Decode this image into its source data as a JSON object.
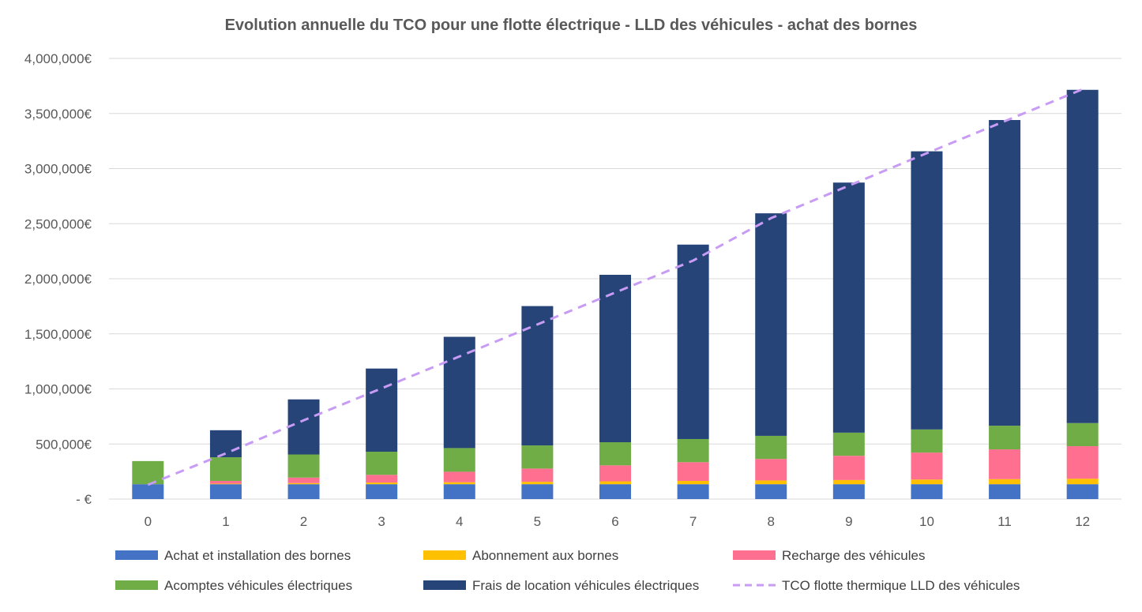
{
  "chart_data": {
    "type": "bar",
    "stacked": true,
    "title": "Evolution annuelle du TCO  pour une flotte électrique - LLD des véhicules - achat des bornes",
    "xlabel": "",
    "ylabel": "",
    "categories": [
      "0",
      "1",
      "2",
      "3",
      "4",
      "5",
      "6",
      "7",
      "8",
      "9",
      "10",
      "11",
      "12"
    ],
    "ylim": [
      0,
      4000000
    ],
    "yticks": [
      0,
      500000,
      1000000,
      1500000,
      2000000,
      2500000,
      3000000,
      3500000,
      4000000
    ],
    "ytick_labels": [
      "-  €",
      "500,000€",
      "1,000,000€",
      "1,500,000€",
      "2,000,000€",
      "2,500,000€",
      "3,000,000€",
      "3,500,000€",
      "4,000,000€"
    ],
    "grid": true,
    "legend_position": "bottom",
    "series": [
      {
        "name": "Achat et installation des bornes",
        "color": "#4472C4",
        "values": [
          135000,
          135000,
          135000,
          135000,
          135000,
          135000,
          135000,
          135000,
          135000,
          135000,
          135000,
          135000,
          135000
        ]
      },
      {
        "name": "Abonnement aux bornes",
        "color": "#FFC000",
        "values": [
          0,
          5000,
          10000,
          15000,
          18000,
          22000,
          26000,
          30000,
          34000,
          38000,
          42000,
          46000,
          50000
        ]
      },
      {
        "name": "Recharge des véhicules",
        "color": "#FF6F8F",
        "values": [
          0,
          25000,
          50000,
          70000,
          95000,
          120000,
          145000,
          170000,
          195000,
          220000,
          245000,
          270000,
          295000
        ]
      },
      {
        "name": "Acomptes véhicules électriques",
        "color": "#70AD47",
        "values": [
          210000,
          215000,
          210000,
          210000,
          215000,
          210000,
          210000,
          210000,
          210000,
          210000,
          210000,
          215000,
          210000
        ]
      },
      {
        "name": "Frais de location véhicules électriques",
        "color": "#264478",
        "values": [
          0,
          245000,
          500000,
          755000,
          1010000,
          1265000,
          1520000,
          1765000,
          2020000,
          2270000,
          2525000,
          2775000,
          3025000
        ]
      }
    ],
    "line_series": {
      "name": "TCO flotte thermique LLD des véhicules",
      "color": "#C89BF5",
      "style": "dashed",
      "values": [
        130000,
        415000,
        715000,
        1005000,
        1295000,
        1585000,
        1875000,
        2165000,
        2550000,
        2845000,
        3140000,
        3430000,
        3720000
      ]
    }
  }
}
